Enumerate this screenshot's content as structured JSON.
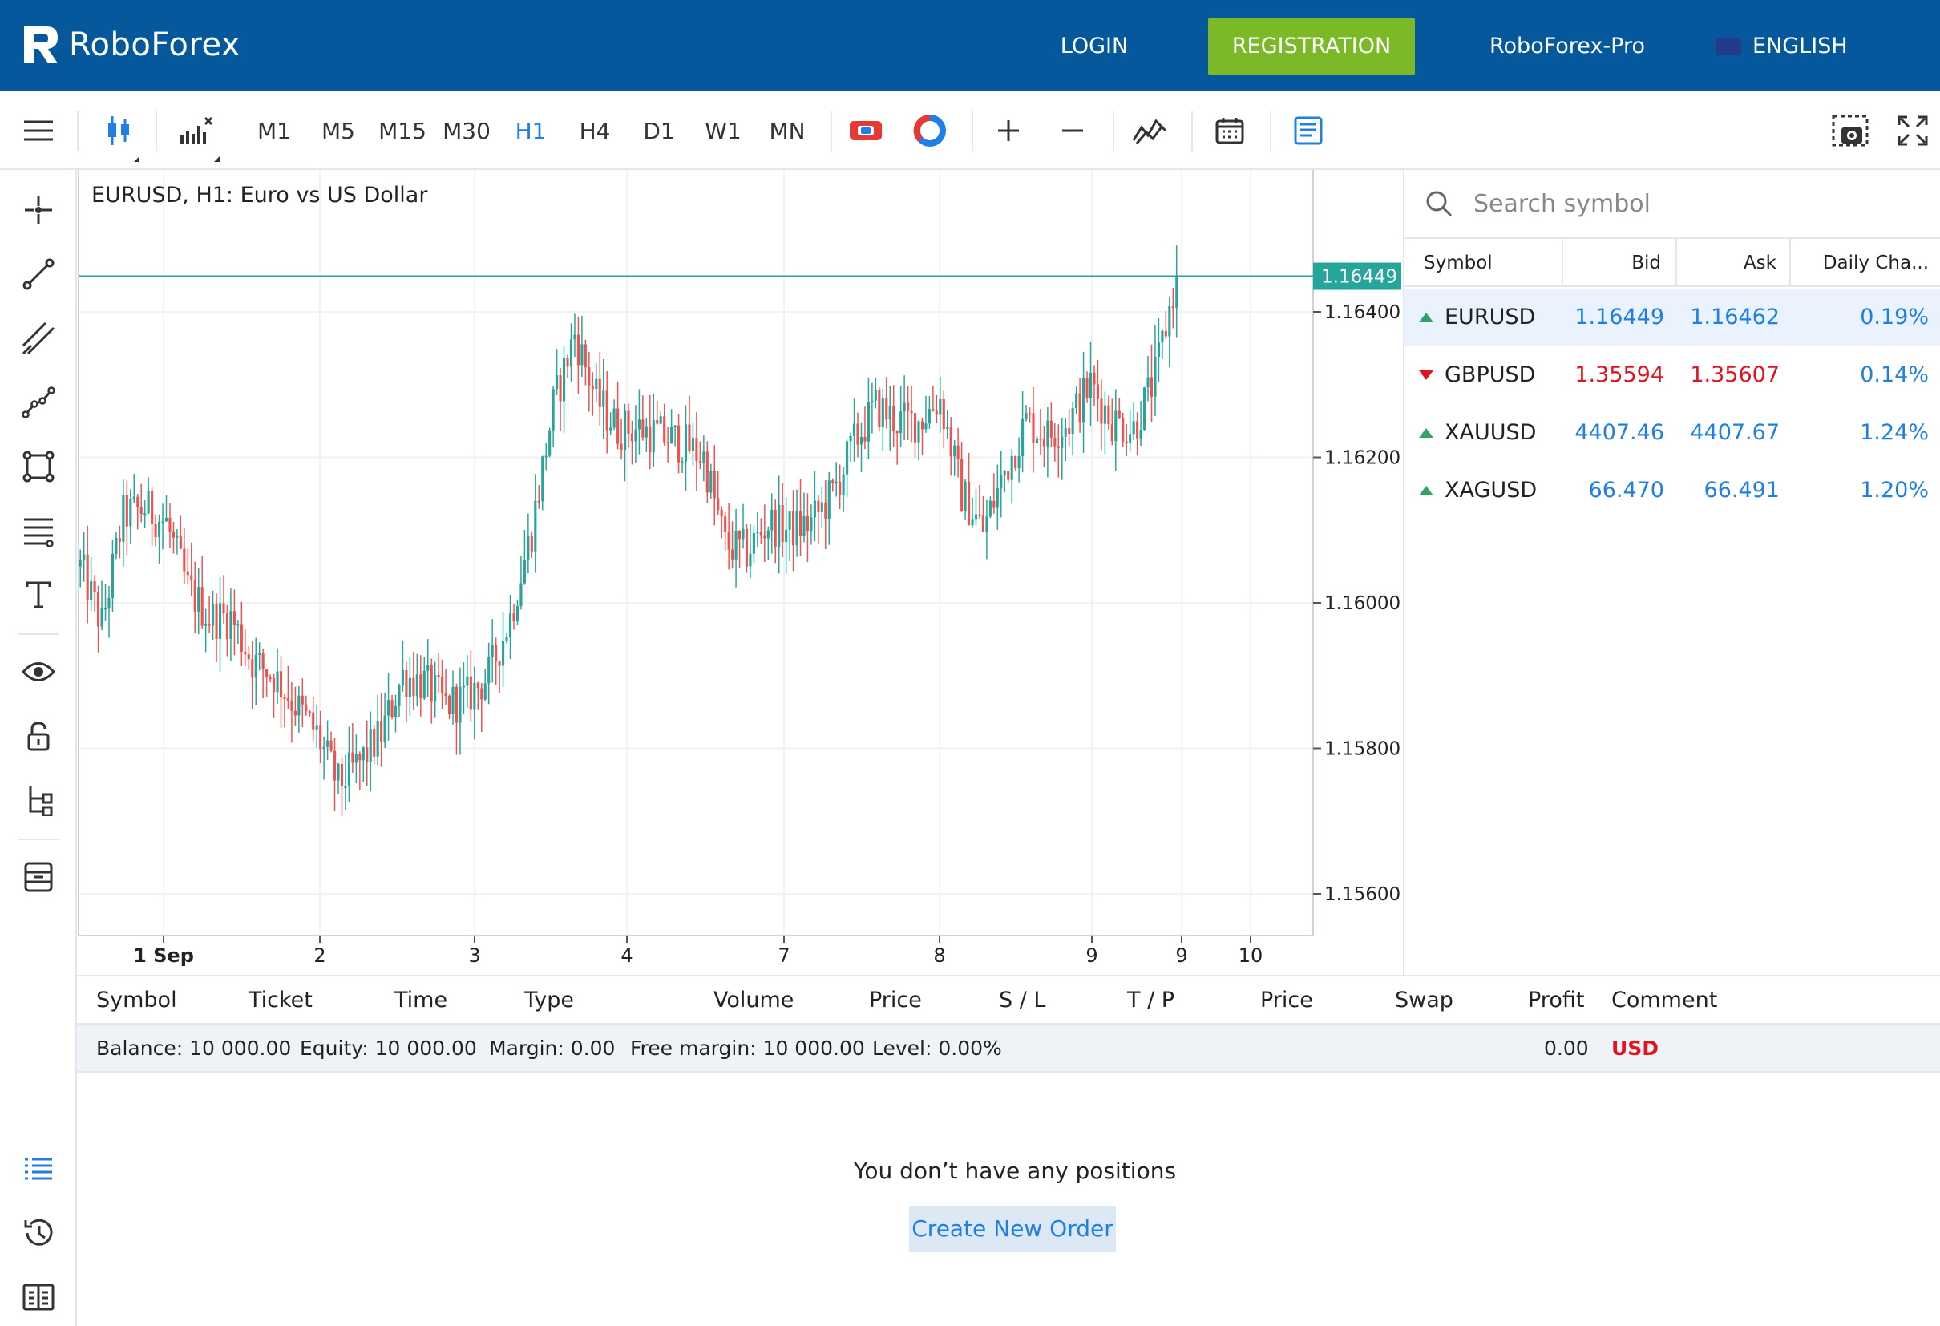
{
  "header": {
    "brand": "RoboForex",
    "login": "LOGIN",
    "registration": "REGISTRATION",
    "pro": "RoboForex-Pro",
    "language": "ENGLISH",
    "colors": {
      "bar": "#05589b",
      "registration": "#7cb928"
    }
  },
  "toolbar": {
    "timeframes": [
      "M1",
      "M5",
      "M15",
      "M30",
      "H1",
      "H4",
      "D1",
      "W1",
      "MN"
    ],
    "active_timeframe": "H1",
    "icons": [
      "menu-icon",
      "candlestick-chart-icon",
      "indicators-icon",
      "compare-icon",
      "chart-settings-icon",
      "zoom-in-icon",
      "zoom-out-icon",
      "drawing-signal-icon",
      "calendar-icon",
      "document-icon",
      "screenshot-icon",
      "fullscreen-icon"
    ]
  },
  "sidebar": {
    "icons": [
      "crosshair-icon",
      "trendline-icon",
      "parallel-lines-icon",
      "polyline-icon",
      "rectangle-icon",
      "fibonacci-icon",
      "text-icon",
      "eye-icon",
      "lock-icon",
      "tree-icon",
      "archive-icon",
      "positions-list-icon",
      "history-icon",
      "account-icon"
    ]
  },
  "chart": {
    "title": "EURUSD, H1: Euro vs US Dollar",
    "current_price": "1.16449"
  },
  "chart_data": {
    "type": "candlestick",
    "title": "EURUSD, H1: Euro vs US Dollar",
    "y_ticks": [
      "1.16400",
      "1.16200",
      "1.16000",
      "1.15800",
      "1.15600"
    ],
    "y_range": [
      1.1552,
      1.166
    ],
    "x_ticks": [
      "1 Sep",
      "2",
      "3",
      "4",
      "7",
      "8",
      "9",
      "9",
      "10"
    ],
    "current_price": 1.16449,
    "grid": true,
    "colors": {
      "up": "#26a69a",
      "down": "#ef5350"
    },
    "close_path": [
      [
        0,
        1.1605
      ],
      [
        6,
        1.1597
      ],
      [
        12,
        1.1612
      ],
      [
        18,
        1.1613
      ],
      [
        24,
        1.1611
      ],
      [
        30,
        1.1602
      ],
      [
        36,
        1.1598
      ],
      [
        42,
        1.1598
      ],
      [
        48,
        1.1592
      ],
      [
        54,
        1.159
      ],
      [
        60,
        1.1586
      ],
      [
        66,
        1.1582
      ],
      [
        72,
        1.1575
      ],
      [
        78,
        1.1578
      ],
      [
        84,
        1.1582
      ],
      [
        90,
        1.159
      ],
      [
        96,
        1.1589
      ],
      [
        102,
        1.1586
      ],
      [
        108,
        1.1587
      ],
      [
        114,
        1.159
      ],
      [
        120,
        1.1598
      ],
      [
        126,
        1.161
      ],
      [
        132,
        1.1627
      ],
      [
        138,
        1.1637
      ],
      [
        144,
        1.1628
      ],
      [
        150,
        1.1624
      ],
      [
        156,
        1.1624
      ],
      [
        162,
        1.1623
      ],
      [
        168,
        1.1622
      ],
      [
        174,
        1.162
      ],
      [
        180,
        1.1608
      ],
      [
        186,
        1.1607
      ],
      [
        192,
        1.1611
      ],
      [
        198,
        1.161
      ],
      [
        204,
        1.1611
      ],
      [
        210,
        1.1615
      ],
      [
        216,
        1.1622
      ],
      [
        222,
        1.1627
      ],
      [
        228,
        1.1625
      ],
      [
        234,
        1.1625
      ],
      [
        240,
        1.1628
      ],
      [
        246,
        1.1615
      ],
      [
        252,
        1.161
      ],
      [
        258,
        1.1618
      ],
      [
        264,
        1.1625
      ],
      [
        270,
        1.1623
      ],
      [
        276,
        1.1625
      ],
      [
        282,
        1.163
      ],
      [
        288,
        1.1625
      ],
      [
        294,
        1.1624
      ],
      [
        300,
        1.1631
      ],
      [
        306,
        1.1645
      ]
    ]
  },
  "watchlist": {
    "search_placeholder": "Search symbol",
    "columns": [
      "Symbol",
      "Bid",
      "Ask",
      "Daily Cha..."
    ],
    "rows": [
      {
        "symbol": "EURUSD",
        "bid": "1.16449",
        "ask": "1.16462",
        "change": "0.19%",
        "dir": "up"
      },
      {
        "symbol": "GBPUSD",
        "bid": "1.35594",
        "ask": "1.35607",
        "change": "0.14%",
        "dir": "down"
      },
      {
        "symbol": "XAUUSD",
        "bid": "4407.46",
        "ask": "4407.67",
        "change": "1.24%",
        "dir": "up"
      },
      {
        "symbol": "XAGUSD",
        "bid": "66.470",
        "ask": "66.491",
        "change": "1.20%",
        "dir": "up"
      }
    ]
  },
  "positions": {
    "columns": [
      "Symbol",
      "Ticket",
      "Time",
      "Type",
      "Volume",
      "Price",
      "S / L",
      "T / P",
      "Price",
      "Swap",
      "Profit",
      "Comment"
    ],
    "balance": "Balance: 10 000.00",
    "equity": "Equity: 10 000.00",
    "margin": "Margin: 0.00",
    "free_margin": "Free margin: 10 000.00",
    "level": "Level: 0.00%",
    "profit": "0.00",
    "currency": "USD",
    "empty_message": "You don’t have any positions",
    "create_order": "Create New Order"
  }
}
